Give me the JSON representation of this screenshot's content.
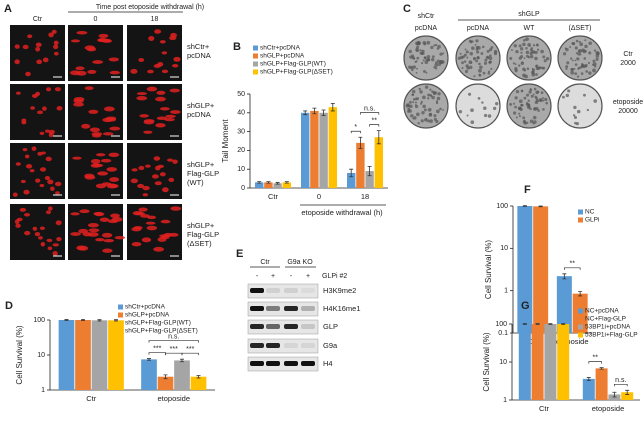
{
  "panel_a": {
    "letter": "A",
    "column_header": "Time post etoposide withdrawal (h)",
    "columns": [
      "Ctr",
      "0",
      "18"
    ],
    "rows": [
      [
        "shCtr+",
        "pcDNA"
      ],
      [
        "shGLP+",
        "pcDNA"
      ],
      [
        "shGLP+",
        "Flag-GLP",
        "(WT)"
      ],
      [
        "shGLP+",
        "Flag-GLP",
        "(ΔSET)"
      ]
    ]
  },
  "panel_c": {
    "letter": "C",
    "groups": [
      "shCtr",
      "shGLP"
    ],
    "columns": [
      "pcDNA",
      "pcDNA",
      "WT",
      "(ΔSET)"
    ],
    "rows": [
      [
        "Ctr",
        "2000"
      ],
      [
        "etoposide",
        "20000"
      ]
    ]
  },
  "panel_e": {
    "letter": "E",
    "groups": [
      "Ctr",
      "G9a KO"
    ],
    "treatment": "GLPi #2",
    "signs": [
      "-",
      "+",
      "-",
      "+"
    ],
    "bands": [
      "H3K9me2",
      "H4K16me1",
      "GLP",
      "G9a",
      "H4"
    ]
  },
  "chart_data": [
    {
      "letter": "B",
      "type": "bar",
      "ylabel": "Tail Moment",
      "categories": [
        "Ctr",
        "0",
        "18"
      ],
      "x_group_label": "etoposide withdrawal (h)",
      "ylim": [
        0,
        50
      ],
      "yticks": [
        0,
        10,
        20,
        30,
        40,
        50
      ],
      "series": [
        {
          "name": "shCtr+pcDNA",
          "color": "#5b9bd5",
          "values": [
            3,
            40,
            8
          ],
          "errors": [
            0.4,
            1,
            2
          ]
        },
        {
          "name": "shGLP+pcDNA",
          "color": "#ed7d31",
          "values": [
            3,
            41,
            24
          ],
          "errors": [
            0.4,
            1.5,
            3
          ]
        },
        {
          "name": "shGLP+Flag-GLP(WT)",
          "color": "#a5a5a5",
          "values": [
            2.5,
            40,
            9
          ],
          "errors": [
            0.4,
            1.5,
            2.5
          ]
        },
        {
          "name": "shGLP+Flag-GLP(ΔSET)",
          "color": "#ffc000",
          "values": [
            3,
            43,
            27
          ],
          "errors": [
            0.4,
            2,
            3.5
          ]
        }
      ],
      "annotations": [
        "*",
        "**",
        "n.s."
      ]
    },
    {
      "letter": "D",
      "type": "bar",
      "ylabel": "Cell Survival (%)",
      "categories": [
        "Ctr",
        "etoposide"
      ],
      "yscale": "log",
      "ylim": [
        1,
        100
      ],
      "yticks": [
        1,
        10,
        100
      ],
      "series": [
        {
          "name": "shCtr+pcDNA",
          "color": "#5b9bd5",
          "values": [
            100,
            7.5
          ],
          "errors": [
            3,
            0.4
          ]
        },
        {
          "name": "shGLP+pcDNA",
          "color": "#ed7d31",
          "values": [
            100,
            2.4
          ],
          "errors": [
            4,
            0.3
          ]
        },
        {
          "name": "shGLP+Flag-GLP(WT)",
          "color": "#a5a5a5",
          "values": [
            98,
            7
          ],
          "errors": [
            4,
            0.6
          ]
        },
        {
          "name": "shGLP+Flag-GLP(ΔSET)",
          "color": "#ffc000",
          "values": [
            98,
            2.4
          ],
          "errors": [
            4,
            0.2
          ]
        }
      ],
      "annotations": [
        "***",
        "***",
        "***",
        "n.s."
      ]
    },
    {
      "letter": "F",
      "type": "bar",
      "ylabel": "Cell Survival (%)",
      "categories": [
        "Ctr",
        "etoposide"
      ],
      "yscale": "log",
      "ylim": [
        0.1,
        100
      ],
      "yticks": [
        0.1,
        1,
        10,
        100
      ],
      "series": [
        {
          "name": "NC",
          "color": "#5b9bd5",
          "values": [
            100,
            2.2
          ],
          "errors": [
            2,
            0.3
          ]
        },
        {
          "name": "GLPi",
          "color": "#ed7d31",
          "values": [
            98,
            0.85
          ],
          "errors": [
            2,
            0.1
          ]
        }
      ],
      "annotations": [
        "**"
      ]
    },
    {
      "letter": "G",
      "type": "bar",
      "ylabel": "Cell Survival (%)",
      "categories": [
        "Ctr",
        "etoposide"
      ],
      "yscale": "log",
      "ylim": [
        1,
        100
      ],
      "yticks": [
        1,
        10,
        100
      ],
      "series": [
        {
          "name": "NC+pcDNA",
          "color": "#5b9bd5",
          "values": [
            100,
            3.6
          ],
          "errors": [
            2,
            0.3
          ]
        },
        {
          "name": "NC+Flag-GLP",
          "color": "#ed7d31",
          "values": [
            100,
            6.8
          ],
          "errors": [
            2,
            0.3
          ]
        },
        {
          "name": "53BP1i+pcDNA",
          "color": "#a5a5a5",
          "values": [
            100,
            1.4
          ],
          "errors": [
            2,
            0.2
          ]
        },
        {
          "name": "53BP1i+Flag-GLP",
          "color": "#ffc000",
          "values": [
            100,
            1.6
          ],
          "errors": [
            2,
            0.2
          ]
        }
      ],
      "annotations": [
        "**",
        "n.s."
      ]
    }
  ]
}
